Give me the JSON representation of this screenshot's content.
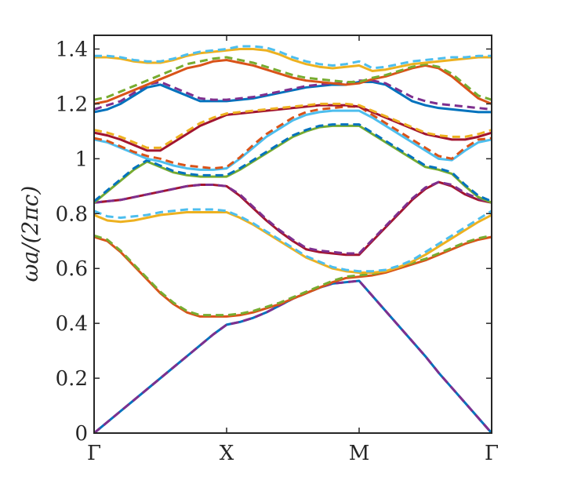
{
  "chart_data": {
    "type": "line",
    "title": "",
    "xlabel": "",
    "ylabel": "ωa/(2πc)",
    "xlim": [
      0,
      3
    ],
    "ylim": [
      0,
      1.45
    ],
    "grid": false,
    "legend": "none",
    "x_ticks": [
      {
        "value": 0,
        "label": "Γ"
      },
      {
        "value": 1,
        "label": "X"
      },
      {
        "value": 2,
        "label": "M"
      },
      {
        "value": 3,
        "label": "Γ"
      }
    ],
    "y_ticks": [
      {
        "value": 0,
        "label": "0"
      },
      {
        "value": 0.2,
        "label": "0.2"
      },
      {
        "value": 0.4,
        "label": "0.4"
      },
      {
        "value": 0.6,
        "label": "0.6"
      },
      {
        "value": 0.8,
        "label": "0.8"
      },
      {
        "value": 1.0,
        "label": "1"
      },
      {
        "value": 1.2,
        "label": "1.2"
      },
      {
        "value": 1.4,
        "label": "1.4"
      }
    ],
    "x_path_positions": [
      0,
      0.1,
      0.2,
      0.3,
      0.4,
      0.5,
      0.6,
      0.7,
      0.8,
      0.9,
      1.0,
      1.1,
      1.2,
      1.3,
      1.4,
      1.5,
      1.6,
      1.7,
      1.8,
      1.9,
      2.0,
      2.1,
      2.2,
      2.3,
      2.4,
      2.5,
      2.6,
      2.7,
      2.8,
      2.9,
      3.0
    ],
    "series": [
      {
        "style": "solid",
        "color": "#0072bd",
        "values": [
          0,
          0.04,
          0.08,
          0.12,
          0.16,
          0.2,
          0.24,
          0.28,
          0.32,
          0.36,
          0.395,
          0.405,
          0.42,
          0.44,
          0.465,
          0.49,
          0.51,
          0.53,
          0.545,
          0.55,
          0.555,
          0.5,
          0.445,
          0.39,
          0.335,
          0.28,
          0.22,
          0.165,
          0.11,
          0.055,
          0
        ]
      },
      {
        "style": "dashed",
        "color": "#7e2f8e",
        "values": [
          0,
          0.04,
          0.08,
          0.12,
          0.16,
          0.2,
          0.24,
          0.28,
          0.32,
          0.36,
          0.395,
          0.405,
          0.42,
          0.44,
          0.465,
          0.49,
          0.51,
          0.53,
          0.545,
          0.55,
          0.555,
          0.5,
          0.445,
          0.39,
          0.335,
          0.28,
          0.22,
          0.165,
          0.11,
          0.055,
          0
        ]
      },
      {
        "style": "solid",
        "color": "#d95319",
        "values": [
          0.715,
          0.7,
          0.66,
          0.61,
          0.56,
          0.51,
          0.47,
          0.44,
          0.425,
          0.425,
          0.425,
          0.43,
          0.44,
          0.455,
          0.47,
          0.49,
          0.51,
          0.53,
          0.55,
          0.565,
          0.57,
          0.575,
          0.585,
          0.6,
          0.615,
          0.63,
          0.65,
          0.67,
          0.69,
          0.705,
          0.715
        ]
      },
      {
        "style": "dashed",
        "color": "#77ac30",
        "values": [
          0.72,
          0.705,
          0.665,
          0.615,
          0.565,
          0.515,
          0.475,
          0.445,
          0.43,
          0.43,
          0.43,
          0.435,
          0.445,
          0.46,
          0.475,
          0.495,
          0.515,
          0.535,
          0.555,
          0.57,
          0.575,
          0.58,
          0.59,
          0.605,
          0.62,
          0.635,
          0.655,
          0.675,
          0.695,
          0.71,
          0.72
        ]
      },
      {
        "style": "solid",
        "color": "#edb120",
        "values": [
          0.795,
          0.775,
          0.77,
          0.775,
          0.785,
          0.795,
          0.8,
          0.805,
          0.805,
          0.805,
          0.805,
          0.785,
          0.76,
          0.73,
          0.7,
          0.67,
          0.64,
          0.62,
          0.6,
          0.59,
          0.585,
          0.585,
          0.59,
          0.605,
          0.625,
          0.65,
          0.68,
          0.71,
          0.74,
          0.77,
          0.795
        ]
      },
      {
        "style": "dashed",
        "color": "#4dbeee",
        "values": [
          0.81,
          0.79,
          0.785,
          0.79,
          0.795,
          0.805,
          0.81,
          0.815,
          0.815,
          0.815,
          0.81,
          0.79,
          0.765,
          0.735,
          0.705,
          0.675,
          0.645,
          0.625,
          0.605,
          0.595,
          0.59,
          0.59,
          0.595,
          0.61,
          0.63,
          0.66,
          0.69,
          0.72,
          0.75,
          0.78,
          0.81
        ]
      },
      {
        "style": "solid",
        "color": "#a2142f",
        "values": [
          0.84,
          0.845,
          0.85,
          0.86,
          0.87,
          0.88,
          0.89,
          0.9,
          0.905,
          0.905,
          0.9,
          0.865,
          0.82,
          0.775,
          0.735,
          0.7,
          0.67,
          0.66,
          0.655,
          0.65,
          0.65,
          0.7,
          0.75,
          0.8,
          0.85,
          0.89,
          0.915,
          0.9,
          0.87,
          0.85,
          0.84
        ]
      },
      {
        "style": "dashed",
        "color": "#7e2f8e",
        "values": [
          0.84,
          0.845,
          0.85,
          0.86,
          0.87,
          0.88,
          0.89,
          0.9,
          0.905,
          0.905,
          0.9,
          0.87,
          0.825,
          0.78,
          0.74,
          0.705,
          0.675,
          0.665,
          0.66,
          0.655,
          0.655,
          0.705,
          0.755,
          0.805,
          0.855,
          0.895,
          0.915,
          0.905,
          0.875,
          0.855,
          0.84
        ]
      },
      {
        "style": "solid",
        "color": "#77ac30",
        "values": [
          0.84,
          0.88,
          0.92,
          0.96,
          0.99,
          0.97,
          0.95,
          0.94,
          0.935,
          0.935,
          0.935,
          0.96,
          0.99,
          1.02,
          1.05,
          1.08,
          1.1,
          1.115,
          1.12,
          1.12,
          1.12,
          1.09,
          1.06,
          1.03,
          1.0,
          0.97,
          0.96,
          0.945,
          0.9,
          0.86,
          0.84
        ]
      },
      {
        "style": "dashed",
        "color": "#0072bd",
        "values": [
          0.845,
          0.885,
          0.925,
          0.965,
          0.995,
          0.975,
          0.955,
          0.945,
          0.94,
          0.94,
          0.94,
          0.965,
          0.995,
          1.025,
          1.055,
          1.085,
          1.105,
          1.12,
          1.125,
          1.125,
          1.125,
          1.095,
          1.065,
          1.035,
          1.005,
          0.975,
          0.965,
          0.95,
          0.905,
          0.865,
          0.845
        ]
      },
      {
        "style": "solid",
        "color": "#4dbeee",
        "values": [
          1.07,
          1.06,
          1.04,
          1.02,
          1.0,
          0.99,
          0.975,
          0.965,
          0.96,
          0.96,
          0.965,
          1.0,
          1.04,
          1.08,
          1.11,
          1.14,
          1.16,
          1.17,
          1.175,
          1.175,
          1.175,
          1.15,
          1.12,
          1.09,
          1.06,
          1.03,
          1.0,
          0.995,
          1.03,
          1.06,
          1.07
        ]
      },
      {
        "style": "dashed",
        "color": "#d95319",
        "values": [
          1.075,
          1.065,
          1.045,
          1.025,
          1.01,
          1.0,
          0.985,
          0.975,
          0.97,
          0.965,
          0.97,
          1.005,
          1.05,
          1.09,
          1.12,
          1.15,
          1.17,
          1.18,
          1.185,
          1.19,
          1.19,
          1.16,
          1.13,
          1.1,
          1.07,
          1.04,
          1.01,
          1.0,
          1.04,
          1.07,
          1.075
        ]
      },
      {
        "style": "solid",
        "color": "#a2142f",
        "values": [
          1.095,
          1.085,
          1.07,
          1.05,
          1.03,
          1.03,
          1.06,
          1.09,
          1.12,
          1.14,
          1.16,
          1.165,
          1.17,
          1.175,
          1.18,
          1.185,
          1.19,
          1.195,
          1.195,
          1.195,
          1.19,
          1.17,
          1.15,
          1.13,
          1.11,
          1.09,
          1.08,
          1.07,
          1.07,
          1.08,
          1.095
        ]
      },
      {
        "style": "dashed",
        "color": "#edb120",
        "values": [
          1.105,
          1.095,
          1.08,
          1.06,
          1.04,
          1.04,
          1.07,
          1.1,
          1.13,
          1.15,
          1.165,
          1.17,
          1.175,
          1.18,
          1.185,
          1.19,
          1.195,
          1.2,
          1.2,
          1.2,
          1.195,
          1.175,
          1.155,
          1.135,
          1.115,
          1.095,
          1.085,
          1.08,
          1.08,
          1.09,
          1.105
        ]
      },
      {
        "style": "solid",
        "color": "#0072bd",
        "values": [
          1.17,
          1.18,
          1.2,
          1.23,
          1.26,
          1.27,
          1.25,
          1.23,
          1.21,
          1.21,
          1.21,
          1.215,
          1.22,
          1.23,
          1.24,
          1.25,
          1.26,
          1.265,
          1.27,
          1.27,
          1.28,
          1.28,
          1.27,
          1.24,
          1.21,
          1.195,
          1.185,
          1.18,
          1.175,
          1.17,
          1.17
        ]
      },
      {
        "style": "dashed",
        "color": "#7e2f8e",
        "values": [
          1.18,
          1.195,
          1.21,
          1.24,
          1.27,
          1.28,
          1.26,
          1.24,
          1.22,
          1.215,
          1.215,
          1.22,
          1.225,
          1.235,
          1.245,
          1.255,
          1.265,
          1.27,
          1.275,
          1.275,
          1.285,
          1.285,
          1.275,
          1.25,
          1.225,
          1.21,
          1.2,
          1.195,
          1.19,
          1.185,
          1.18
        ]
      },
      {
        "style": "solid",
        "color": "#d95319",
        "values": [
          1.2,
          1.21,
          1.23,
          1.25,
          1.27,
          1.29,
          1.31,
          1.33,
          1.34,
          1.355,
          1.36,
          1.35,
          1.34,
          1.325,
          1.31,
          1.295,
          1.285,
          1.28,
          1.275,
          1.27,
          1.275,
          1.29,
          1.3,
          1.315,
          1.33,
          1.34,
          1.33,
          1.3,
          1.26,
          1.22,
          1.2
        ]
      },
      {
        "style": "dashed",
        "color": "#77ac30",
        "values": [
          1.215,
          1.225,
          1.245,
          1.265,
          1.285,
          1.305,
          1.325,
          1.345,
          1.355,
          1.365,
          1.37,
          1.36,
          1.35,
          1.335,
          1.32,
          1.305,
          1.295,
          1.29,
          1.285,
          1.28,
          1.28,
          1.295,
          1.305,
          1.32,
          1.335,
          1.345,
          1.335,
          1.31,
          1.27,
          1.23,
          1.215
        ]
      },
      {
        "style": "solid",
        "color": "#edb120",
        "values": [
          1.37,
          1.37,
          1.365,
          1.355,
          1.35,
          1.35,
          1.36,
          1.375,
          1.385,
          1.39,
          1.395,
          1.4,
          1.4,
          1.395,
          1.38,
          1.36,
          1.345,
          1.335,
          1.33,
          1.335,
          1.34,
          1.32,
          1.325,
          1.335,
          1.345,
          1.35,
          1.355,
          1.36,
          1.365,
          1.37,
          1.37
        ]
      },
      {
        "style": "dashed",
        "color": "#4dbeee",
        "values": [
          1.375,
          1.375,
          1.37,
          1.36,
          1.355,
          1.355,
          1.365,
          1.38,
          1.39,
          1.395,
          1.4,
          1.41,
          1.41,
          1.405,
          1.39,
          1.37,
          1.355,
          1.345,
          1.34,
          1.345,
          1.355,
          1.33,
          1.335,
          1.345,
          1.355,
          1.36,
          1.365,
          1.37,
          1.37,
          1.375,
          1.375
        ]
      }
    ]
  }
}
